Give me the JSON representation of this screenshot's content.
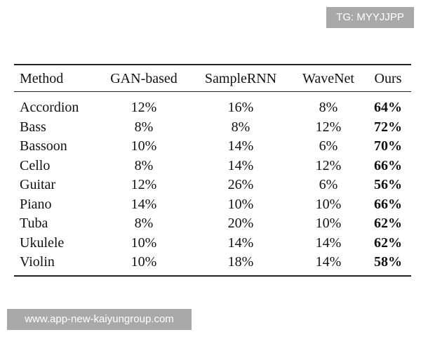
{
  "watermarks": {
    "top": "TG: MYYJJPP",
    "bottom": "www.app-new-kaiyungroup.com"
  },
  "table": {
    "header": [
      "Method",
      "GAN-based",
      "SampleRNN",
      "WaveNet",
      "Ours"
    ],
    "rows": [
      [
        "Accordion",
        "12%",
        "16%",
        "8%",
        "64%"
      ],
      [
        "Bass",
        "8%",
        "8%",
        "12%",
        "72%"
      ],
      [
        "Bassoon",
        "10%",
        "14%",
        "6%",
        "70%"
      ],
      [
        "Cello",
        "8%",
        "14%",
        "12%",
        "66%"
      ],
      [
        "Guitar",
        "12%",
        "26%",
        "6%",
        "56%"
      ],
      [
        "Piano",
        "14%",
        "10%",
        "10%",
        "66%"
      ],
      [
        "Tuba",
        "8%",
        "20%",
        "10%",
        "62%"
      ],
      [
        "Ukulele",
        "10%",
        "14%",
        "14%",
        "62%"
      ],
      [
        "Violin",
        "10%",
        "18%",
        "14%",
        "58%"
      ]
    ]
  }
}
